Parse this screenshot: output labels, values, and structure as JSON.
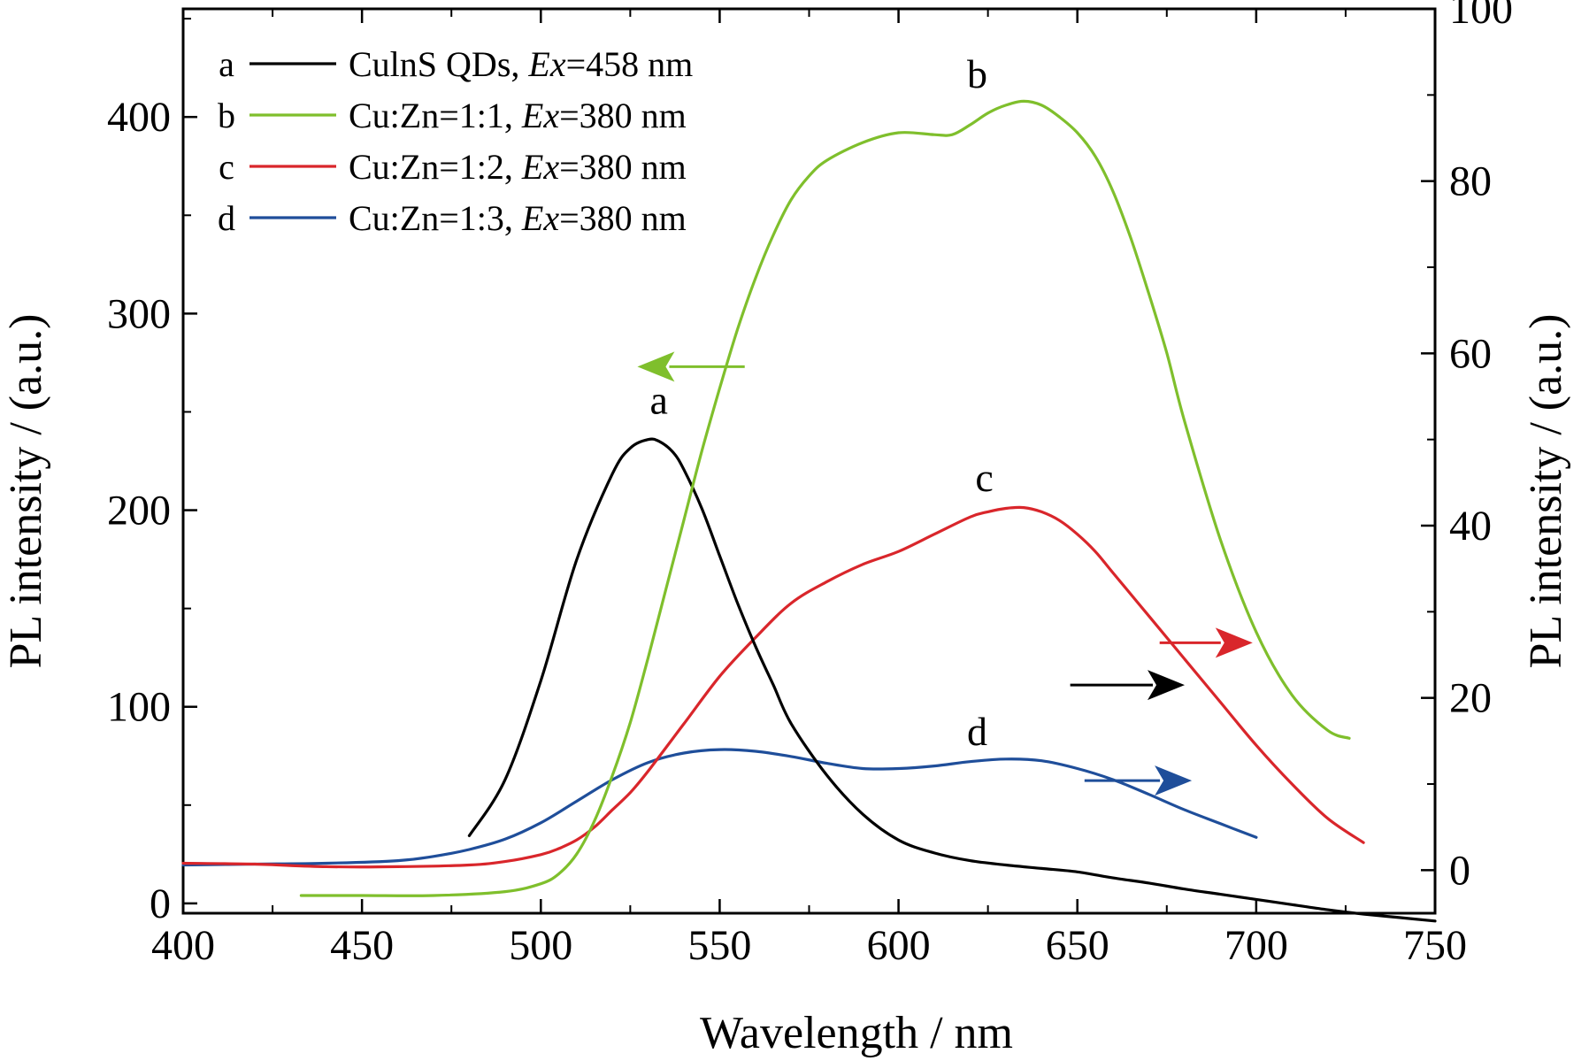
{
  "chart_data": {
    "type": "line",
    "xlabel": "Wavelength / nm",
    "ylabel_left": "PL intensity / (a.u.)",
    "ylabel_right": "PL intensity / (a.u.)",
    "xlim": [
      400,
      750
    ],
    "ylim_left": [
      -5,
      455
    ],
    "ylim_right": [
      -5,
      100
    ],
    "x_ticks": [
      400,
      450,
      500,
      550,
      600,
      650,
      700,
      750
    ],
    "y_left_ticks": [
      0,
      100,
      200,
      300,
      400
    ],
    "y_right_ticks": [
      0,
      20,
      40,
      60,
      80,
      100
    ],
    "grid": false,
    "legend_position": "top-left",
    "series": [
      {
        "letter": "a",
        "name": "CuInS QDs, Ex=458 nm",
        "legend_plain": "CulnS QDs, ",
        "legend_italic": "Ex",
        "legend_rest": "=458 nm",
        "color": "#000000",
        "axis": "right",
        "label_pos": [
          533,
          53
        ],
        "arrow": {
          "from": [
            648,
            21.5
          ],
          "to": [
            680,
            21.5
          ]
        },
        "x": [
          480,
          490,
          500,
          510,
          520,
          525,
          530,
          533,
          537,
          540,
          545,
          550,
          555,
          560,
          565,
          570,
          580,
          590,
          600,
          610,
          620,
          630,
          640,
          650,
          660,
          670,
          680,
          690,
          700,
          710,
          720,
          730,
          740,
          750
        ],
        "y": [
          4.0,
          10.5,
          22.0,
          36.0,
          46.0,
          49.0,
          50.0,
          49.8,
          48.5,
          46.5,
          42.0,
          36.5,
          31.0,
          26.0,
          21.5,
          17.0,
          11.0,
          6.5,
          3.5,
          2.0,
          1.1,
          0.6,
          0.2,
          -0.2,
          -0.9,
          -1.5,
          -2.2,
          -2.8,
          -3.4,
          -4.0,
          -4.6,
          -5.1,
          -5.5,
          -5.9
        ]
      },
      {
        "letter": "b",
        "name": "Cu:Zn=1:1, Ex=380 nm",
        "legend_plain": "Cu:Zn=1:1, ",
        "legend_italic": "Ex",
        "legend_rest": "=380 nm",
        "color": "#7fbf2c",
        "axis": "left",
        "label_pos": [
          622,
          415
        ],
        "arrow": {
          "from": [
            557,
            273
          ],
          "to": [
            527,
            273
          ]
        },
        "x": [
          433,
          450,
          470,
          490,
          500,
          505,
          510,
          515,
          520,
          525,
          530,
          535,
          540,
          545,
          550,
          555,
          560,
          565,
          570,
          575,
          580,
          590,
          600,
          610,
          615,
          620,
          625,
          630,
          635,
          640,
          645,
          650,
          655,
          660,
          665,
          670,
          675,
          680,
          690,
          700,
          710,
          720,
          726
        ],
        "y": [
          4,
          4,
          4,
          6,
          10,
          15,
          25,
          42,
          65,
          92,
          125,
          160,
          195,
          230,
          262,
          292,
          318,
          340,
          358,
          370,
          378,
          387,
          392,
          391,
          391,
          396,
          402,
          406,
          408,
          406,
          400,
          392,
          380,
          362,
          338,
          310,
          280,
          245,
          185,
          138,
          106,
          88,
          84
        ]
      },
      {
        "letter": "c",
        "name": "Cu:Zn=1:2, Ex=380 nm",
        "legend_plain": "Cu:Zn=1:2, ",
        "legend_italic": "Ex",
        "legend_rest": "=380 nm",
        "color": "#d9262b",
        "axis": "right",
        "label_pos": [
          624,
          44
        ],
        "arrow": {
          "from": [
            673,
            26.4
          ],
          "to": [
            699,
            26.4
          ]
        },
        "x": [
          400,
          420,
          440,
          460,
          480,
          490,
          500,
          505,
          510,
          515,
          520,
          525,
          530,
          540,
          550,
          560,
          570,
          580,
          590,
          600,
          610,
          620,
          625,
          630,
          635,
          640,
          645,
          650,
          655,
          660,
          670,
          680,
          690,
          700,
          710,
          720,
          730
        ],
        "y": [
          0.8,
          0.7,
          0.4,
          0.4,
          0.6,
          1.0,
          1.8,
          2.5,
          3.5,
          5.0,
          7.0,
          9.0,
          11.5,
          17.0,
          22.5,
          27.0,
          31.0,
          33.5,
          35.5,
          37.0,
          39.0,
          41.0,
          41.6,
          42.0,
          42.1,
          41.6,
          40.6,
          39.0,
          37.0,
          34.5,
          29.5,
          24.5,
          19.5,
          14.5,
          10.0,
          6.0,
          3.2
        ]
      },
      {
        "letter": "d",
        "name": "Cu:Zn=1:3, Ex=380 nm",
        "legend_plain": "Cu:Zn=1:3, ",
        "legend_italic": "Ex",
        "legend_rest": "=380 nm",
        "color": "#1f4e9a",
        "axis": "right",
        "label_pos": [
          622,
          14.5
        ],
        "arrow": {
          "from": [
            652,
            10.4
          ],
          "to": [
            682,
            10.4
          ]
        },
        "x": [
          400,
          420,
          440,
          460,
          470,
          480,
          490,
          500,
          510,
          520,
          530,
          540,
          550,
          560,
          570,
          580,
          590,
          600,
          610,
          620,
          630,
          640,
          650,
          660,
          670,
          680,
          690,
          700
        ],
        "y": [
          0.6,
          0.7,
          0.8,
          1.1,
          1.6,
          2.4,
          3.6,
          5.5,
          8.0,
          10.5,
          12.5,
          13.6,
          14.0,
          13.8,
          13.2,
          12.4,
          11.8,
          11.8,
          12.1,
          12.6,
          12.9,
          12.7,
          11.8,
          10.5,
          8.8,
          7.0,
          5.4,
          3.8
        ]
      }
    ]
  }
}
